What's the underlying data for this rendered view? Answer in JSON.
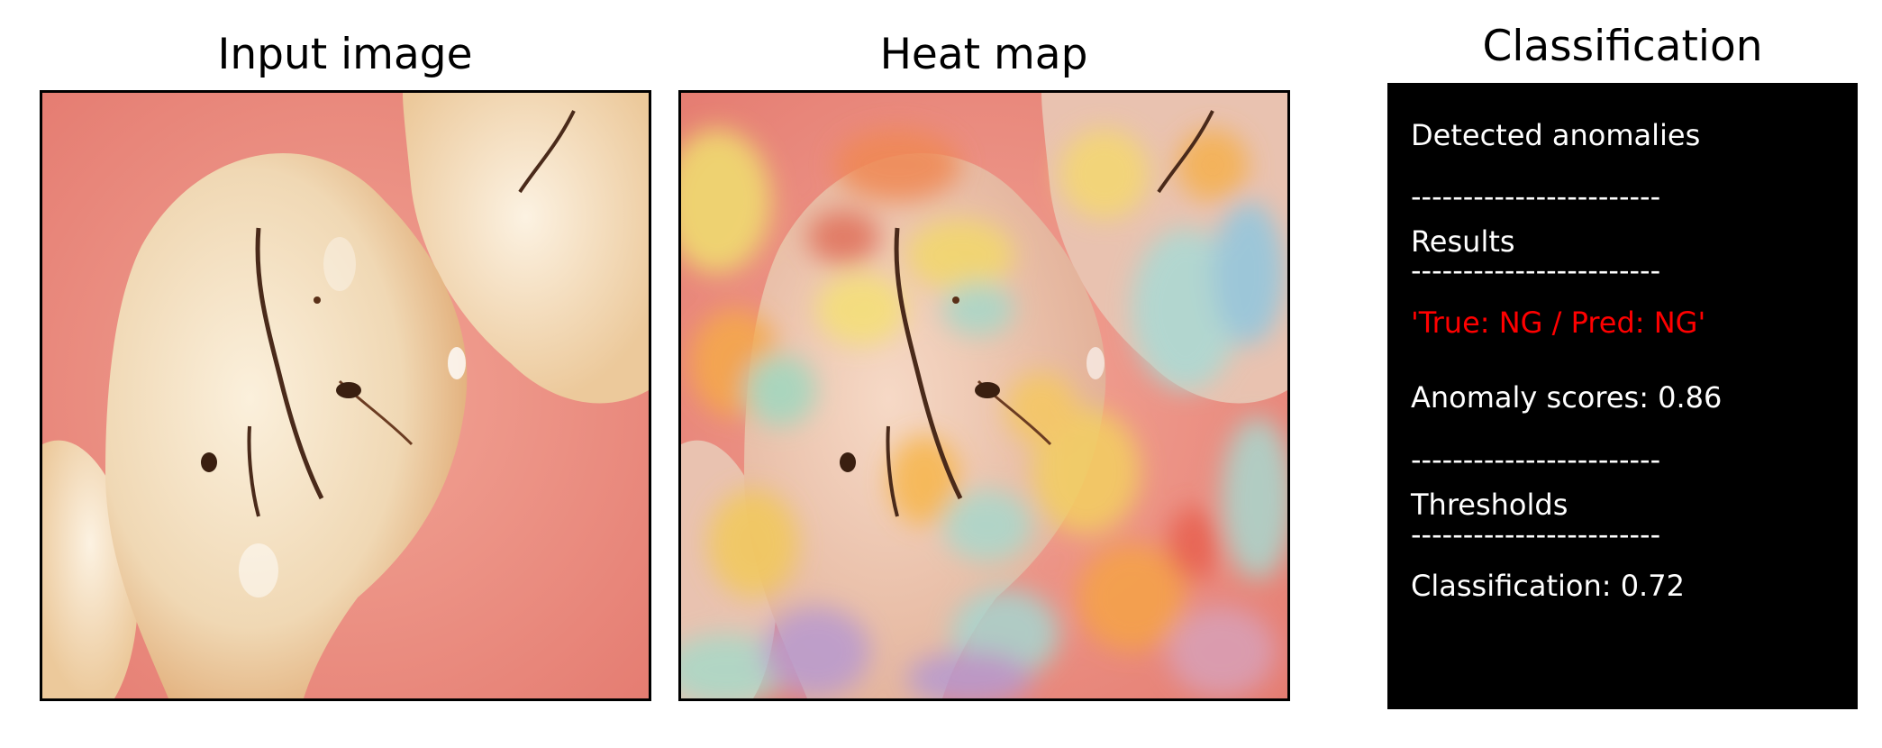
{
  "panels": {
    "input": {
      "title": "Input image"
    },
    "heatmap": {
      "title": "Heat map"
    },
    "classification": {
      "title": "Classification",
      "lines": {
        "detected": "Detected anomalies",
        "sep1": "------------------------",
        "results": "Results",
        "sep2": "------------------------",
        "verdict": "'True: NG / Pred: NG'",
        "score": "Anomaly scores: 0.86",
        "sep3": "------------------------",
        "thresholds": "Thresholds",
        "sep4": "------------------------",
        "threshold_value": "Classification: 0.72"
      },
      "colors": {
        "background": "#000000",
        "text": "#ffffff",
        "verdict": "#ff0000"
      }
    }
  }
}
